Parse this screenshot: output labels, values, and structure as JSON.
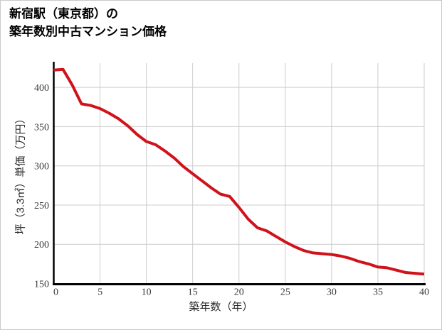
{
  "header": {
    "title_line1": "新宿駅（東京都）の",
    "title_line2": "築年数別中古マンション価格"
  },
  "chart_data": {
    "type": "line",
    "title": "新宿駅（東京都）の築年数別中古マンション価格",
    "xlabel": "築年数（年）",
    "ylabel": "坪（3.3㎡）単価（万円）",
    "x": [
      0,
      1,
      2,
      3,
      4,
      5,
      6,
      7,
      8,
      9,
      10,
      11,
      12,
      13,
      14,
      15,
      16,
      17,
      18,
      19,
      20,
      21,
      22,
      23,
      24,
      25,
      26,
      27,
      28,
      29,
      30,
      31,
      32,
      33,
      34,
      35,
      36,
      37,
      38,
      39,
      40
    ],
    "values": [
      422,
      423,
      403,
      379,
      377,
      373,
      367,
      360,
      351,
      340,
      331,
      327,
      319,
      310,
      299,
      290,
      281,
      272,
      264,
      261,
      247,
      232,
      221,
      217,
      210,
      203,
      197,
      192,
      189,
      188,
      187,
      185,
      182,
      178,
      175,
      171,
      170,
      167,
      164,
      163,
      162
    ],
    "xlim": [
      0,
      40
    ],
    "ylim": [
      150,
      430
    ],
    "x_ticks": [
      0,
      5,
      10,
      15,
      20,
      25,
      30,
      35,
      40
    ],
    "y_ticks": [
      150,
      200,
      250,
      300,
      350,
      400
    ],
    "grid": true,
    "legend": "none",
    "line_color": "#d0121b",
    "axis_color": "#000000",
    "grid_color": "#cccccc",
    "tick_label_color": "#3a3a3a"
  }
}
